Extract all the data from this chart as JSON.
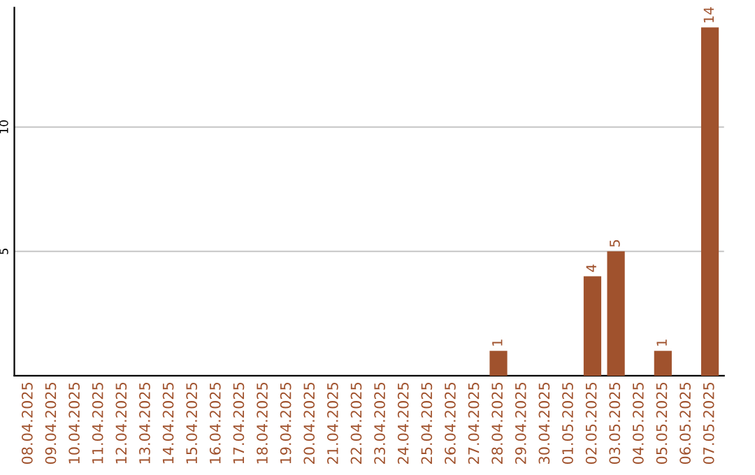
{
  "chart_data": {
    "type": "bar",
    "categories": [
      "08.04.2025",
      "09.04.2025",
      "10.04.2025",
      "11.04.2025",
      "12.04.2025",
      "13.04.2025",
      "14.04.2025",
      "15.04.2025",
      "16.04.2025",
      "17.04.2025",
      "18.04.2025",
      "19.04.2025",
      "20.04.2025",
      "21.04.2025",
      "22.04.2025",
      "23.04.2025",
      "24.04.2025",
      "25.04.2025",
      "26.04.2025",
      "27.04.2025",
      "28.04.2025",
      "29.04.2025",
      "30.04.2025",
      "01.05.2025",
      "02.05.2025",
      "03.05.2025",
      "04.05.2025",
      "05.05.2025",
      "06.05.2025",
      "07.05.2025"
    ],
    "values": [
      0,
      0,
      0,
      0,
      0,
      0,
      0,
      0,
      0,
      0,
      0,
      0,
      0,
      0,
      0,
      0,
      0,
      0,
      0,
      0,
      1,
      0,
      0,
      0,
      4,
      5,
      0,
      1,
      0,
      14
    ],
    "value_labels": [
      null,
      null,
      null,
      null,
      null,
      null,
      null,
      null,
      null,
      null,
      null,
      null,
      null,
      null,
      null,
      null,
      null,
      null,
      null,
      null,
      "1",
      null,
      null,
      null,
      "4",
      "5",
      null,
      "1",
      null,
      "14"
    ],
    "color": "#a0522d",
    "ylim": [
      0,
      14.8
    ],
    "yticks": [
      5,
      10
    ],
    "grid": "y"
  }
}
